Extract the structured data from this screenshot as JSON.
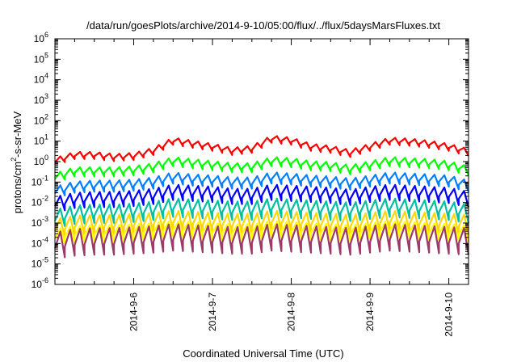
{
  "chart_data": {
    "type": "line",
    "title": "/data/run/goesPlots/archive/2014-9-10/05:00/flux/../flux/5daysMarsFluxes.txt",
    "xlabel": "Coordinated Universal Time (UTC)",
    "ylabel": {
      "prefix": "protons/cm",
      "superscript": "2",
      "suffix": "-s-sr-MeV"
    },
    "yscale": "log",
    "ylim": [
      1e-06,
      1000000.0
    ],
    "xlim": [
      0.0,
      5.25
    ],
    "y_ticks": [
      {
        "exp": -6,
        "label": "10",
        "sup": "-6"
      },
      {
        "exp": -5,
        "label": "10",
        "sup": "-5"
      },
      {
        "exp": -4,
        "label": "10",
        "sup": "-4"
      },
      {
        "exp": -3,
        "label": "10",
        "sup": "-3"
      },
      {
        "exp": -2,
        "label": "10",
        "sup": "-2"
      },
      {
        "exp": -1,
        "label": "10",
        "sup": "-1"
      },
      {
        "exp": 0,
        "label": "10",
        "sup": "0"
      },
      {
        "exp": 1,
        "label": "10",
        "sup": "1"
      },
      {
        "exp": 2,
        "label": "10",
        "sup": "2"
      },
      {
        "exp": 3,
        "label": "10",
        "sup": "3"
      },
      {
        "exp": 4,
        "label": "10",
        "sup": "4"
      },
      {
        "exp": 5,
        "label": "10",
        "sup": "5"
      },
      {
        "exp": 6,
        "label": "10",
        "sup": "6"
      }
    ],
    "x_ticks": [
      {
        "x": 1,
        "label": "2014-9-6"
      },
      {
        "x": 2,
        "label": "2014-9-7"
      },
      {
        "x": 3,
        "label": "2014-9-8"
      },
      {
        "x": 4,
        "label": "2014-9-9"
      },
      {
        "x": 5,
        "label": "2014-9-10"
      }
    ],
    "grid": false,
    "legend": "none",
    "series": [
      {
        "color": "#ff0000",
        "base_exp": [
          0.0,
          0.3,
          0.3,
          0.2,
          0.25,
          0.5,
          1.0,
          0.85,
          0.7,
          0.5,
          0.6,
          1.1,
          1.0,
          0.7,
          0.6,
          0.4,
          0.7,
          1.0,
          0.95,
          0.85,
          0.7,
          0.45
        ]
      },
      {
        "color": "#00ff00",
        "base_exp": [
          -0.8,
          -0.5,
          -0.5,
          -0.5,
          -0.45,
          -0.3,
          0.0,
          -0.1,
          -0.2,
          -0.3,
          -0.3,
          0.0,
          -0.05,
          -0.2,
          -0.25,
          -0.4,
          -0.2,
          0.0,
          -0.05,
          -0.1,
          -0.2,
          -0.45
        ]
      },
      {
        "color": "#0080ff",
        "base_exp": [
          -1.5,
          -1.25,
          -1.2,
          -1.2,
          -1.15,
          -1.05,
          -0.8,
          -0.9,
          -0.95,
          -1.05,
          -1.05,
          -0.8,
          -0.85,
          -0.95,
          -1.0,
          -1.1,
          -0.95,
          -0.8,
          -0.85,
          -0.9,
          -0.95,
          -1.2
        ]
      },
      {
        "color": "#0000ff",
        "base_exp": [
          -2.1,
          -1.9,
          -1.85,
          -1.85,
          -1.8,
          -1.7,
          -1.5,
          -1.55,
          -1.6,
          -1.7,
          -1.7,
          -1.5,
          -1.55,
          -1.6,
          -1.65,
          -1.75,
          -1.6,
          -1.5,
          -1.55,
          -1.6,
          -1.65,
          -1.85
        ]
      },
      {
        "color": "#00c0a0",
        "base_exp": [
          -2.8,
          -2.6,
          -2.55,
          -2.55,
          -2.5,
          -2.4,
          -2.25,
          -2.3,
          -2.35,
          -2.4,
          -2.4,
          -2.25,
          -2.3,
          -2.35,
          -2.4,
          -2.45,
          -2.35,
          -2.25,
          -2.3,
          -2.35,
          -2.4,
          -2.55
        ]
      },
      {
        "color": "#ffd700",
        "base_exp": [
          -3.3,
          -3.15,
          -3.1,
          -3.1,
          -3.05,
          -3.0,
          -2.9,
          -2.95,
          -3.0,
          -3.05,
          -3.05,
          -2.9,
          -2.95,
          -3.0,
          -3.05,
          -3.1,
          -3.0,
          -2.9,
          -2.95,
          -3.0,
          -3.05,
          -3.1
        ]
      },
      {
        "color": "#ffff00",
        "base_exp": [
          -3.7,
          -3.55,
          -3.5,
          -3.5,
          -3.45,
          -3.4,
          -3.3,
          -3.35,
          -3.4,
          -3.45,
          -3.45,
          -3.3,
          -3.35,
          -3.4,
          -3.45,
          -3.5,
          -3.4,
          -3.3,
          -3.35,
          -3.4,
          -3.45,
          -3.5
        ]
      },
      {
        "color": "#9c3a6a",
        "base_exp": [
          -4.1,
          -3.95,
          -3.9,
          -3.9,
          -3.85,
          -3.8,
          -3.7,
          -3.75,
          -3.8,
          -3.85,
          -3.85,
          -3.7,
          -3.75,
          -3.8,
          -3.85,
          -3.9,
          -3.8,
          -3.7,
          -3.75,
          -3.8,
          -3.85,
          -3.9
        ]
      }
    ],
    "sawtooth": {
      "period_days": 0.125,
      "drop_exp": [
        0.35,
        0.45,
        0.55,
        0.75,
        0.9,
        1.0,
        0.8,
        1.3
      ]
    }
  }
}
